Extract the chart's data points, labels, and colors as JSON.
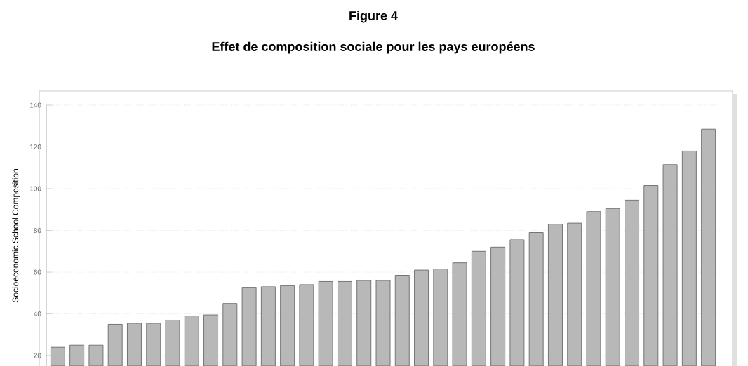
{
  "chart_data": {
    "type": "bar",
    "title": "Figure 4",
    "subtitle": "Effet de composition sociale pour les pays européens",
    "ylabel": "Socioeconomic School Composition",
    "categories": [
      null,
      null,
      null,
      null,
      null,
      null,
      null,
      null,
      null,
      null,
      null,
      null,
      null,
      null,
      null,
      null,
      null,
      null,
      null,
      null,
      null,
      null,
      null,
      null,
      null,
      null,
      null,
      null,
      null,
      null,
      null,
      null,
      null,
      null,
      null
    ],
    "values": [
      24,
      25,
      25,
      35,
      35.5,
      35.5,
      37,
      39,
      39.5,
      45,
      52.5,
      53,
      53.5,
      54,
      55.5,
      55.5,
      56,
      56,
      58.5,
      61,
      61.5,
      64.5,
      70,
      72,
      75.5,
      79,
      83,
      83.5,
      89,
      90.5,
      94.5,
      101.5,
      111.5,
      118,
      128.5
    ],
    "color": "#b8b8b8",
    "ylim": [
      15,
      140
    ],
    "yticks": [
      20,
      40,
      60,
      80,
      100,
      120,
      140
    ],
    "grid": "y",
    "tick_labels": "y"
  }
}
